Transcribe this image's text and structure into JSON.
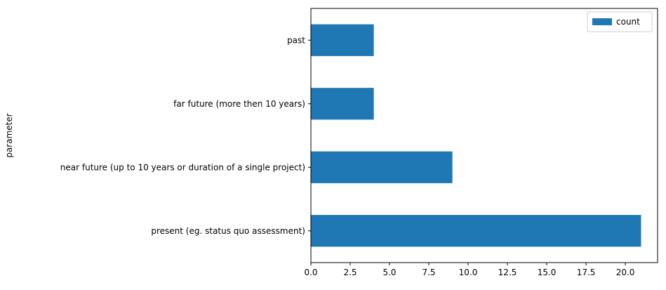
{
  "chart_data": {
    "type": "bar",
    "orientation": "horizontal",
    "categories": [
      "present (eg. status quo assessment)",
      "near future (up to 10 years or duration of a single project)",
      "far future (more then 10 years)",
      "past"
    ],
    "series": [
      {
        "name": "count",
        "values": [
          21,
          9,
          4,
          4
        ],
        "color": "#1f77b4"
      }
    ],
    "ylabel": "parameter",
    "xlabel": "",
    "xlim": [
      0,
      22.05
    ],
    "xticks": [
      "0.0",
      "2.5",
      "5.0",
      "7.5",
      "10.0",
      "12.5",
      "15.0",
      "17.5",
      "20.0"
    ],
    "grid": false,
    "legend": {
      "placement": "top-right",
      "entries": [
        "count"
      ]
    }
  }
}
